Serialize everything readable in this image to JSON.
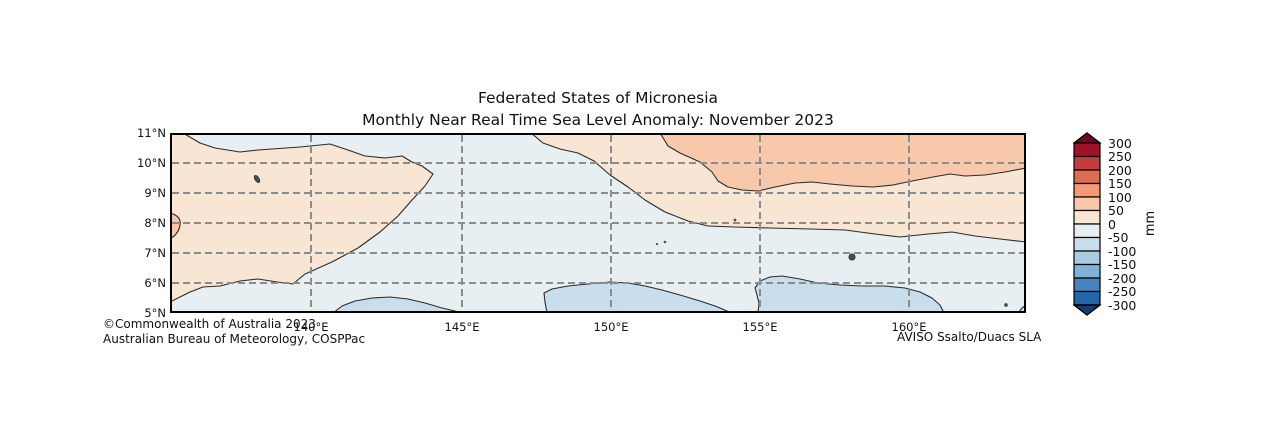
{
  "title": {
    "line1": "Federated States of Micronesia",
    "line2": "Monthly Near Real Time Sea Level Anomaly: November 2023"
  },
  "axes": {
    "y_ticks": [
      "11°N",
      "10°N",
      "9°N",
      "8°N",
      "7°N",
      "6°N",
      "5°N"
    ],
    "x_ticks": [
      "140°E",
      "145°E",
      "150°E",
      "155°E",
      "160°E"
    ]
  },
  "colorbar": {
    "unit_label": "mm",
    "tick_labels": [
      "300",
      "250",
      "200",
      "150",
      "100",
      "50",
      "0",
      "-50",
      "-100",
      "-150",
      "-200",
      "-250",
      "-300"
    ],
    "band_colors_top_to_bottom": [
      "#a01229",
      "#c23d3b",
      "#dc6e54",
      "#f09a78",
      "#f8c8aa",
      "#f9e5d3",
      "#e8eff3",
      "#c9deec",
      "#a9cce3",
      "#7fb2d6",
      "#4585bc",
      "#2566a8"
    ],
    "arrow_top_color": "#6d0a20",
    "arrow_bottom_color": "#0d3e78"
  },
  "footer": {
    "copyright_line1": "©Commonwealth of Australia 2023",
    "copyright_line2": "Australian Bureau of Meteorology, COSPPac",
    "source": "AVISO Ssalto/Duacs SLA"
  },
  "chart_data": {
    "type": "heatmap",
    "subtype": "filled-contour-map",
    "title": "Federated States of Micronesia — Monthly Near Real Time Sea Level Anomaly: November 2023",
    "unit": "mm",
    "contour_levels_mm": [
      -300,
      -250,
      -200,
      -150,
      -100,
      -50,
      0,
      50,
      100,
      150,
      200,
      250,
      300
    ],
    "colorbar_extends": "both",
    "lat_ticks_deg_n": [
      11,
      10,
      9,
      8,
      7,
      6,
      5
    ],
    "lon_ticks_deg_e": [
      140,
      145,
      150,
      155,
      160
    ],
    "grid": "dashed gray at each labeled parallel/meridian",
    "legend_position": "right colorbar",
    "level_colors": {
      "pos_50_100": "#f8c8aa",
      "pos_0_50": "#f9e5d3",
      "neg_50_0": "#e8eff3",
      "neg_100_50": "#c9deec"
    },
    "regions": [
      {
        "area": "western bloc, left edge to ~149°E between ~6°N and ~10.2°N",
        "anomaly_mm": "0 to +50"
      },
      {
        "area": "small pocket on west edge near 8°N",
        "anomaly_mm": "+50 to +100"
      },
      {
        "area": "northeast bloc, ~149°E to right edge north of a boundary sloping from 11°N down to ~8°N",
        "anomaly_mm": "0 to +50"
      },
      {
        "area": "far northeast, north of ~9.4–10°N from ~152°E to right edge",
        "anomaly_mm": "+50 to +100"
      },
      {
        "area": "central and southern background",
        "anomaly_mm": "-50 to 0"
      },
      {
        "area": "southern patches near 5–6°N at ~147.5–149.8°E, ~152.5–158.8°E, ~159.7–163°E and bottom-right corner",
        "anomaly_mm": "-100 to -50"
      }
    ],
    "island_marks_approx": [
      {
        "lat_n": 9.5,
        "lon_e": 138.0
      },
      {
        "lat_n": 8.1,
        "lon_e": 154.0
      },
      {
        "lat_n": 7.3,
        "lon_e": 151.4
      },
      {
        "lat_n": 7.4,
        "lon_e": 151.7
      },
      {
        "lat_n": 7.0,
        "lon_e": 157.9
      },
      {
        "lat_n": 5.4,
        "lon_e": 163.0
      }
    ]
  }
}
